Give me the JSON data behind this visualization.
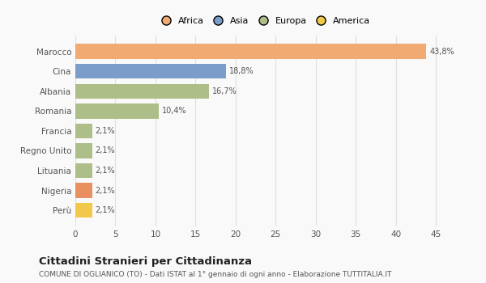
{
  "categories": [
    "Marocco",
    "Cina",
    "Albania",
    "Romania",
    "Francia",
    "Regno Unito",
    "Lituania",
    "Nigeria",
    "Perù"
  ],
  "values": [
    43.8,
    18.8,
    16.7,
    10.4,
    2.1,
    2.1,
    2.1,
    2.1,
    2.1
  ],
  "labels": [
    "43,8%",
    "18,8%",
    "16,7%",
    "10,4%",
    "2,1%",
    "2,1%",
    "2,1%",
    "2,1%",
    "2,1%"
  ],
  "colors": [
    "#F0AA72",
    "#7B9DC9",
    "#AEBE88",
    "#AEBE88",
    "#AEBE88",
    "#AEBE88",
    "#AEBE88",
    "#E89060",
    "#F2C84B"
  ],
  "legend_labels": [
    "Africa",
    "Asia",
    "Europa",
    "America"
  ],
  "legend_colors": [
    "#F0AA72",
    "#7B9DC9",
    "#AEBE88",
    "#F2C84B"
  ],
  "title": "Cittadini Stranieri per Cittadinanza",
  "subtitle": "COMUNE DI OGLIANICO (TO) - Dati ISTAT al 1° gennaio di ogni anno - Elaborazione TUTTITALIA.IT",
  "xlim": [
    0,
    47
  ],
  "xticks": [
    0,
    5,
    10,
    15,
    20,
    25,
    30,
    35,
    40,
    45
  ],
  "bg_color": "#f9f9f9",
  "grid_color": "#e0e0e0"
}
